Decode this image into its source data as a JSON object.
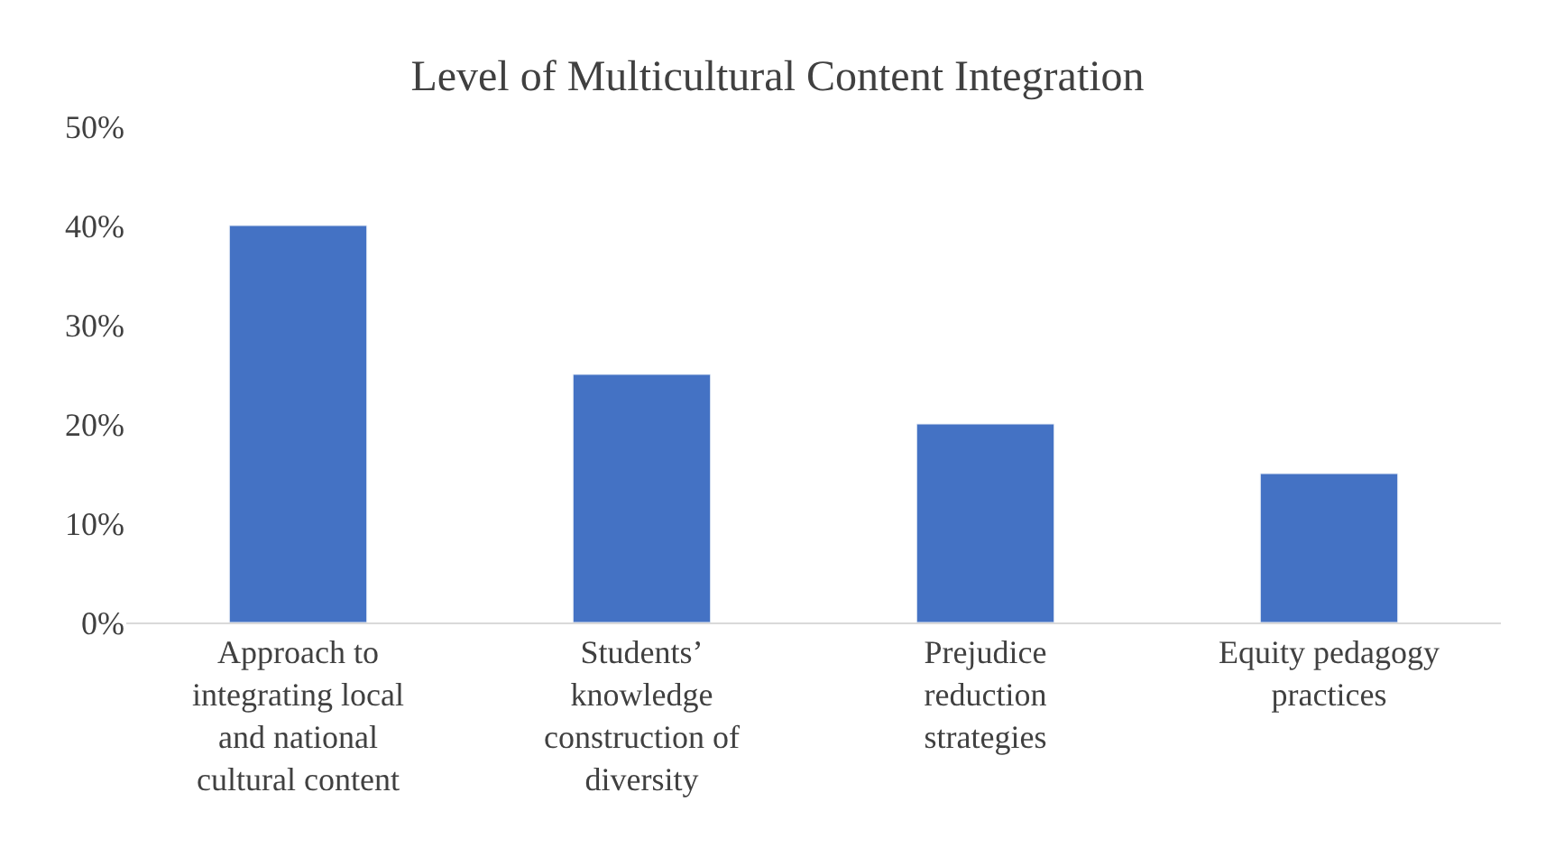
{
  "chart_data": {
    "type": "bar",
    "title": "Level of Multicultural Content Integration",
    "categories": [
      "Approach to integrating local and national cultural content",
      "Students’ knowledge construction of diversity",
      "Prejudice reduction strategies",
      "Equity pedagogy practices"
    ],
    "values": [
      40,
      25,
      20,
      15
    ],
    "color": "#4472c4",
    "ylim": [
      0,
      50
    ],
    "yticks": [
      {
        "value": 0,
        "label": "0%"
      },
      {
        "value": 10,
        "label": "10%"
      },
      {
        "value": 20,
        "label": "20%"
      },
      {
        "value": 30,
        "label": "30%"
      },
      {
        "value": 40,
        "label": "40%"
      },
      {
        "value": 50,
        "label": "50%"
      }
    ],
    "grid": false
  }
}
